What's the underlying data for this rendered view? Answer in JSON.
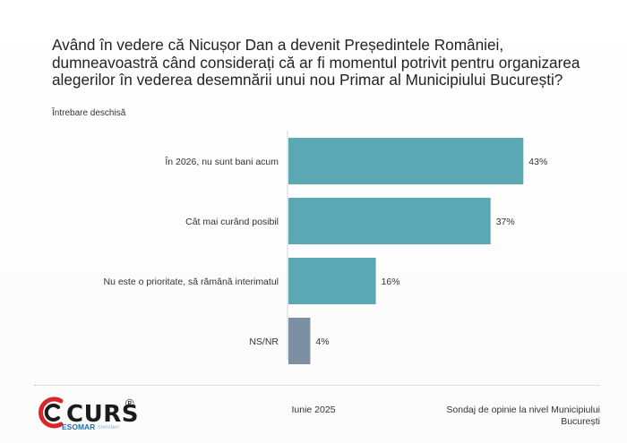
{
  "header": {
    "title": "Având în vedere că Nicușor Dan a devenit Președintele României, dumneavoastră când considerați că ar fi momentul potrivit pentru organizarea alegerilor în vederea desemnării unui nou Primar al Municipiului București?",
    "subtitle": "Întrebare deschisă"
  },
  "chart_data": {
    "type": "bar",
    "orientation": "horizontal",
    "categories": [
      "În 2026, nu sunt bani acum",
      "Cât mai curând posibil",
      "Nu este o prioritate, să rămână interimatul",
      "NS/NR"
    ],
    "values": [
      43,
      37,
      16,
      4
    ],
    "value_labels": [
      "43%",
      "37%",
      "16%",
      "4%"
    ],
    "colors": [
      "#5aa8b3",
      "#5aa8b3",
      "#5aa8b3",
      "#7d8fa3"
    ],
    "xlim": [
      0,
      50
    ],
    "grid": false,
    "legend": "none"
  },
  "footer": {
    "logo_name": "CURS",
    "logo_reg": "®",
    "logo_esomar": "ESOMAR",
    "logo_member": "member",
    "date": "Iunie 2025",
    "source": "Sondaj de opinie la nivel Municipiului București"
  }
}
